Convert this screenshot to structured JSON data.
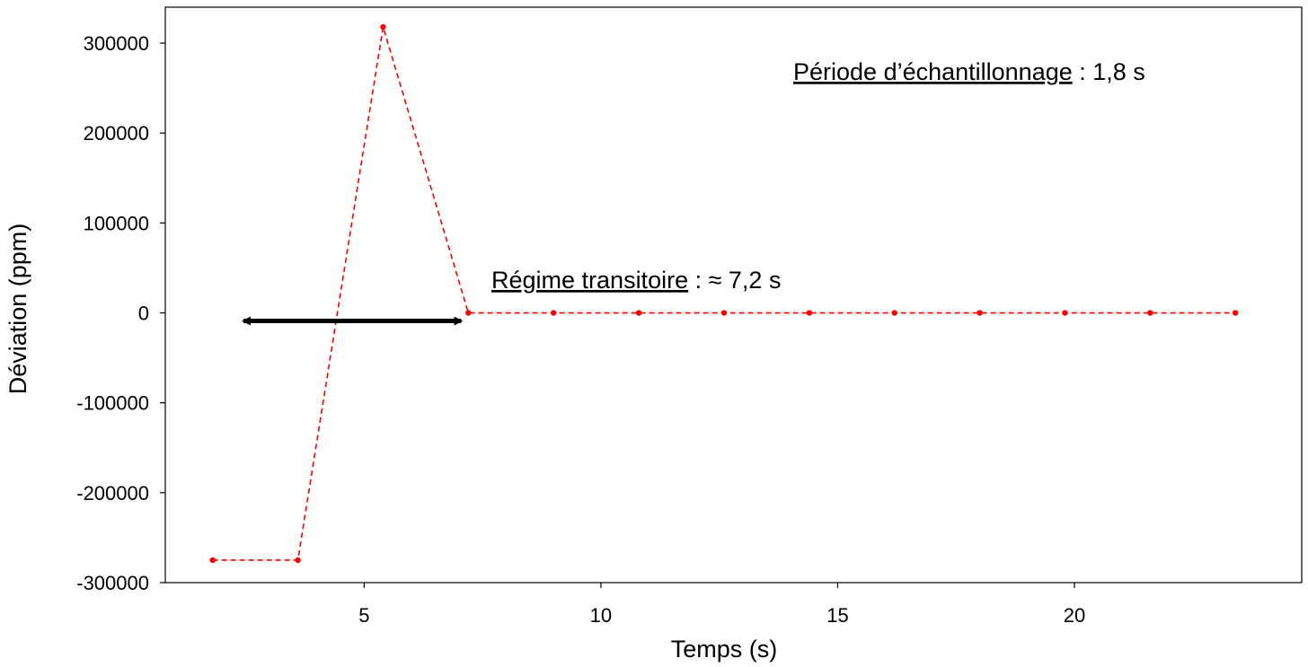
{
  "chart_data": {
    "type": "line",
    "xlabel": "Temps (s)",
    "ylabel": "Déviation (ppm)",
    "xlim": [
      0.8,
      24.8
    ],
    "ylim": [
      -300000,
      340000
    ],
    "x_ticks": [
      5,
      10,
      15,
      20
    ],
    "y_ticks": [
      300000,
      200000,
      100000,
      0,
      -100000,
      -200000,
      -300000
    ],
    "x_tick_labels": [
      "5",
      "10",
      "15",
      "20"
    ],
    "y_tick_labels": [
      "300000",
      "200000",
      "100000",
      "0",
      "-100000",
      "-200000",
      "-300000"
    ],
    "grid": false,
    "series": [
      {
        "color": "#ff0000",
        "line_style": "dashed",
        "x": [
          1.8,
          3.6,
          5.4,
          7.2,
          9.0,
          10.8,
          12.6,
          14.4,
          16.2,
          18.0,
          19.8,
          21.6,
          23.4
        ],
        "y": [
          -275000,
          -275000,
          318000,
          0,
          0,
          0,
          0,
          0,
          0,
          0,
          0,
          0,
          0
        ]
      }
    ],
    "annotations": {
      "sampling_label": "Période d’échantillonnage",
      "sampling_value": " :  1,8 s",
      "transient_label": "Régime transitoire",
      "transient_value": " : ≈ 7,2 s",
      "transient_arrow_x": [
        2.3,
        7.2
      ],
      "transient_arrow_y": -9000
    }
  }
}
